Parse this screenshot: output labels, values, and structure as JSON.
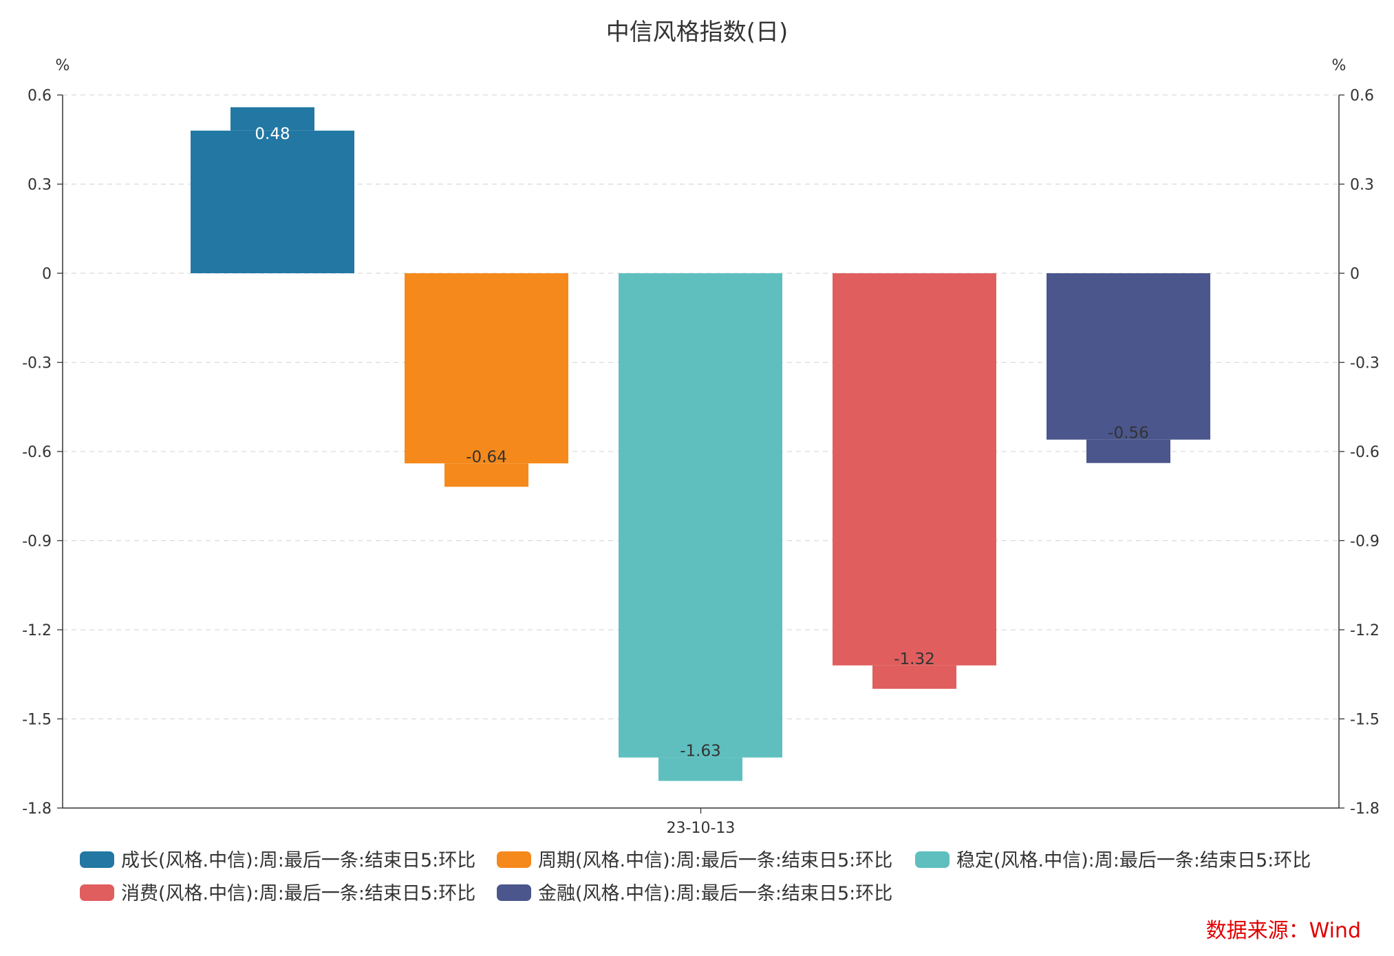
{
  "chart_data": {
    "type": "bar",
    "title": "中信风格指数(日)",
    "y_unit_left": "%",
    "y_unit_right": "%",
    "categories": [
      "23-10-13"
    ],
    "ylim": [
      -1.8,
      0.6
    ],
    "yticks": [
      "0.6",
      "0.3",
      "0",
      "-0.3",
      "-0.6",
      "-0.9",
      "-1.2",
      "-1.5",
      "-1.8"
    ],
    "grid": true,
    "legend_position": "bottom",
    "series": [
      {
        "name": "成长(风格.中信):周:最后一条:结束日5:环比",
        "values": [
          0.48
        ],
        "label": "0.48",
        "color": "#2277a3"
      },
      {
        "name": "周期(风格.中信):周:最后一条:结束日5:环比",
        "values": [
          -0.64
        ],
        "label": "-0.64",
        "color": "#f5891b"
      },
      {
        "name": "稳定(风格.中信):周:最后一条:结束日5:环比",
        "values": [
          -1.63
        ],
        "label": "-1.63",
        "color": "#5fbfbf"
      },
      {
        "name": "消费(风格.中信):周:最后一条:结束日5:环比",
        "values": [
          -1.32
        ],
        "label": "-1.32",
        "color": "#e05e5e"
      },
      {
        "name": "金融(风格.中信):周:最后一条:结束日5:环比",
        "values": [
          -0.56
        ],
        "label": "-0.56",
        "color": "#4a568c"
      }
    ]
  },
  "source": "数据来源：Wind"
}
